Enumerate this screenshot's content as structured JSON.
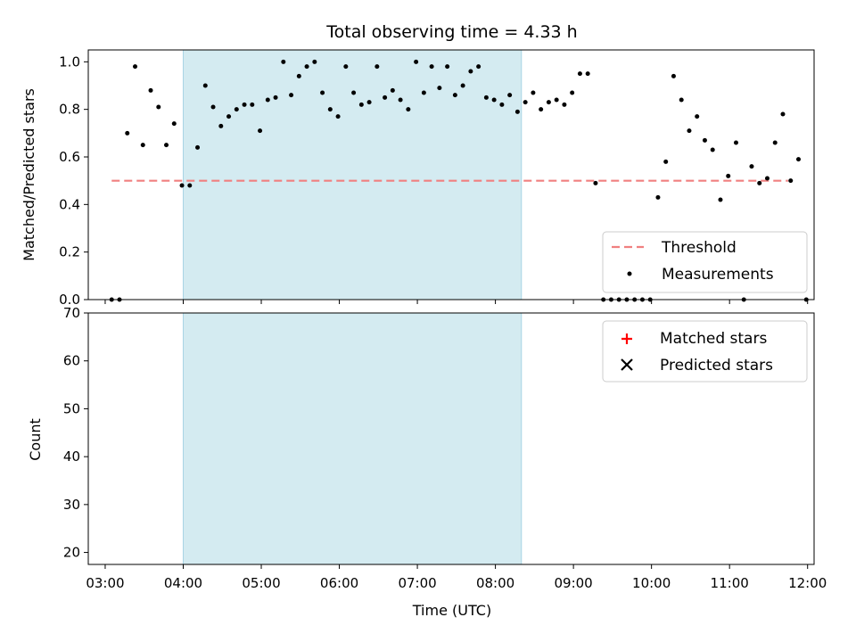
{
  "chart_data": {
    "title": "Total observing time = 4.33 h",
    "xlabel": "Time (UTC)",
    "x_ticks": [
      "03:00",
      "04:00",
      "05:00",
      "06:00",
      "07:00",
      "08:00",
      "09:00",
      "10:00",
      "11:00",
      "12:00"
    ],
    "xlim": [
      "02:47",
      "12:05"
    ],
    "observing_window": {
      "start": "04:00",
      "end": "08:20",
      "color": "#d4ebf1"
    },
    "top": {
      "type": "scatter",
      "ylabel": "Matched/Predicted stars",
      "ylim": [
        0,
        1.05
      ],
      "y_ticks": [
        "0.0",
        "0.2",
        "0.4",
        "0.6",
        "0.8",
        "1.0"
      ],
      "threshold": {
        "name": "Threshold",
        "value": 0.5,
        "x_start": "03:05",
        "x_end": "11:45",
        "color": "#f08080"
      },
      "measurements": {
        "name": "Measurements",
        "color": "#000000",
        "points": [
          [
            "03:05",
            0
          ],
          [
            "03:11",
            0
          ],
          [
            "03:17",
            0.7
          ],
          [
            "03:23",
            0.98
          ],
          [
            "03:29",
            0.65
          ],
          [
            "03:35",
            0.88
          ],
          [
            "03:41",
            0.81
          ],
          [
            "03:47",
            0.65
          ],
          [
            "03:53",
            0.74
          ],
          [
            "03:59",
            0.48
          ],
          [
            "04:05",
            0.48
          ],
          [
            "04:11",
            0.64
          ],
          [
            "04:17",
            0.9
          ],
          [
            "04:23",
            0.81
          ],
          [
            "04:29",
            0.73
          ],
          [
            "04:35",
            0.77
          ],
          [
            "04:41",
            0.8
          ],
          [
            "04:47",
            0.82
          ],
          [
            "04:53",
            0.82
          ],
          [
            "04:59",
            0.71
          ],
          [
            "05:05",
            0.84
          ],
          [
            "05:11",
            0.85
          ],
          [
            "05:17",
            1.0
          ],
          [
            "05:23",
            0.86
          ],
          [
            "05:29",
            0.94
          ],
          [
            "05:35",
            0.98
          ],
          [
            "05:41",
            1.0
          ],
          [
            "05:47",
            0.87
          ],
          [
            "05:53",
            0.8
          ],
          [
            "05:59",
            0.77
          ],
          [
            "06:05",
            0.98
          ],
          [
            "06:11",
            0.87
          ],
          [
            "06:17",
            0.82
          ],
          [
            "06:23",
            0.83
          ],
          [
            "06:29",
            0.98
          ],
          [
            "06:35",
            0.85
          ],
          [
            "06:41",
            0.88
          ],
          [
            "06:47",
            0.84
          ],
          [
            "06:53",
            0.8
          ],
          [
            "06:59",
            1.0
          ],
          [
            "07:05",
            0.87
          ],
          [
            "07:11",
            0.98
          ],
          [
            "07:17",
            0.89
          ],
          [
            "07:23",
            0.98
          ],
          [
            "07:29",
            0.86
          ],
          [
            "07:35",
            0.9
          ],
          [
            "07:41",
            0.96
          ],
          [
            "07:47",
            0.98
          ],
          [
            "07:53",
            0.85
          ],
          [
            "07:59",
            0.84
          ],
          [
            "08:05",
            0.82
          ],
          [
            "08:11",
            0.86
          ],
          [
            "08:17",
            0.79
          ],
          [
            "08:23",
            0.83
          ],
          [
            "08:29",
            0.87
          ],
          [
            "08:35",
            0.8
          ],
          [
            "08:41",
            0.83
          ],
          [
            "08:47",
            0.84
          ],
          [
            "08:53",
            0.82
          ],
          [
            "08:59",
            0.87
          ],
          [
            "09:05",
            0.95
          ],
          [
            "09:11",
            0.95
          ],
          [
            "09:17",
            0.49
          ],
          [
            "09:23",
            0
          ],
          [
            "09:29",
            0
          ],
          [
            "09:35",
            0
          ],
          [
            "09:41",
            0
          ],
          [
            "09:47",
            0
          ],
          [
            "09:53",
            0
          ],
          [
            "09:59",
            0
          ],
          [
            "10:05",
            0.43
          ],
          [
            "10:11",
            0.58
          ],
          [
            "10:17",
            0.94
          ],
          [
            "10:23",
            0.84
          ],
          [
            "10:29",
            0.71
          ],
          [
            "10:35",
            0.77
          ],
          [
            "10:41",
            0.67
          ],
          [
            "10:47",
            0.63
          ],
          [
            "10:53",
            0.42
          ],
          [
            "10:59",
            0.52
          ],
          [
            "11:05",
            0.66
          ],
          [
            "11:11",
            0
          ],
          [
            "11:17",
            0.56
          ],
          [
            "11:23",
            0.49
          ],
          [
            "11:29",
            0.51
          ],
          [
            "11:35",
            0.66
          ],
          [
            "11:41",
            0.78
          ],
          [
            "11:47",
            0.5
          ],
          [
            "11:53",
            0.59
          ],
          [
            "11:59",
            0
          ]
        ]
      }
    },
    "bottom": {
      "type": "scatter",
      "ylabel": "Count",
      "ylim": [
        17.5,
        70
      ],
      "y_ticks": [
        "20",
        "30",
        "40",
        "50",
        "60",
        "70"
      ],
      "matched": {
        "name": "Matched stars",
        "color": "#ff0000",
        "points": []
      },
      "predicted": {
        "name": "Predicted stars",
        "color": "#000000",
        "points": []
      }
    }
  }
}
